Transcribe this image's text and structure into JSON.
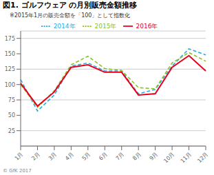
{
  "chart_data": {
    "type": "line",
    "title": "図1. ゴルフウェア の月別販売金額推移",
    "subtitle": "※2015年1月の販売金額を「100」として指数化",
    "annotations": [
      "© GfK 2017"
    ],
    "categories": [
      "1月",
      "2月",
      "3月",
      "4月",
      "5月",
      "6月",
      "7月",
      "8月",
      "9月",
      "10月",
      "11月",
      "12月"
    ],
    "series": [
      {
        "name": "2014年",
        "color": "#29ABE2",
        "line_style": "dashed",
        "values": [
          108,
          57,
          83,
          130,
          135,
          122,
          122,
          85,
          92,
          130,
          158,
          148
        ]
      },
      {
        "name": "2015年",
        "color": "#8DC21F",
        "line_style": "dashed",
        "values": [
          100,
          63,
          90,
          132,
          146,
          126,
          123,
          95,
          93,
          135,
          152,
          138
        ]
      },
      {
        "name": "2016年",
        "color": "#E8001C",
        "line_style": "solid",
        "values": [
          102,
          65,
          88,
          128,
          132,
          120,
          120,
          83,
          85,
          128,
          147,
          122
        ]
      }
    ],
    "ylim": [
      0,
      187
    ],
    "yticks": [
      25,
      50,
      75,
      100,
      125,
      150,
      175
    ],
    "grid": true,
    "legend": "top"
  }
}
